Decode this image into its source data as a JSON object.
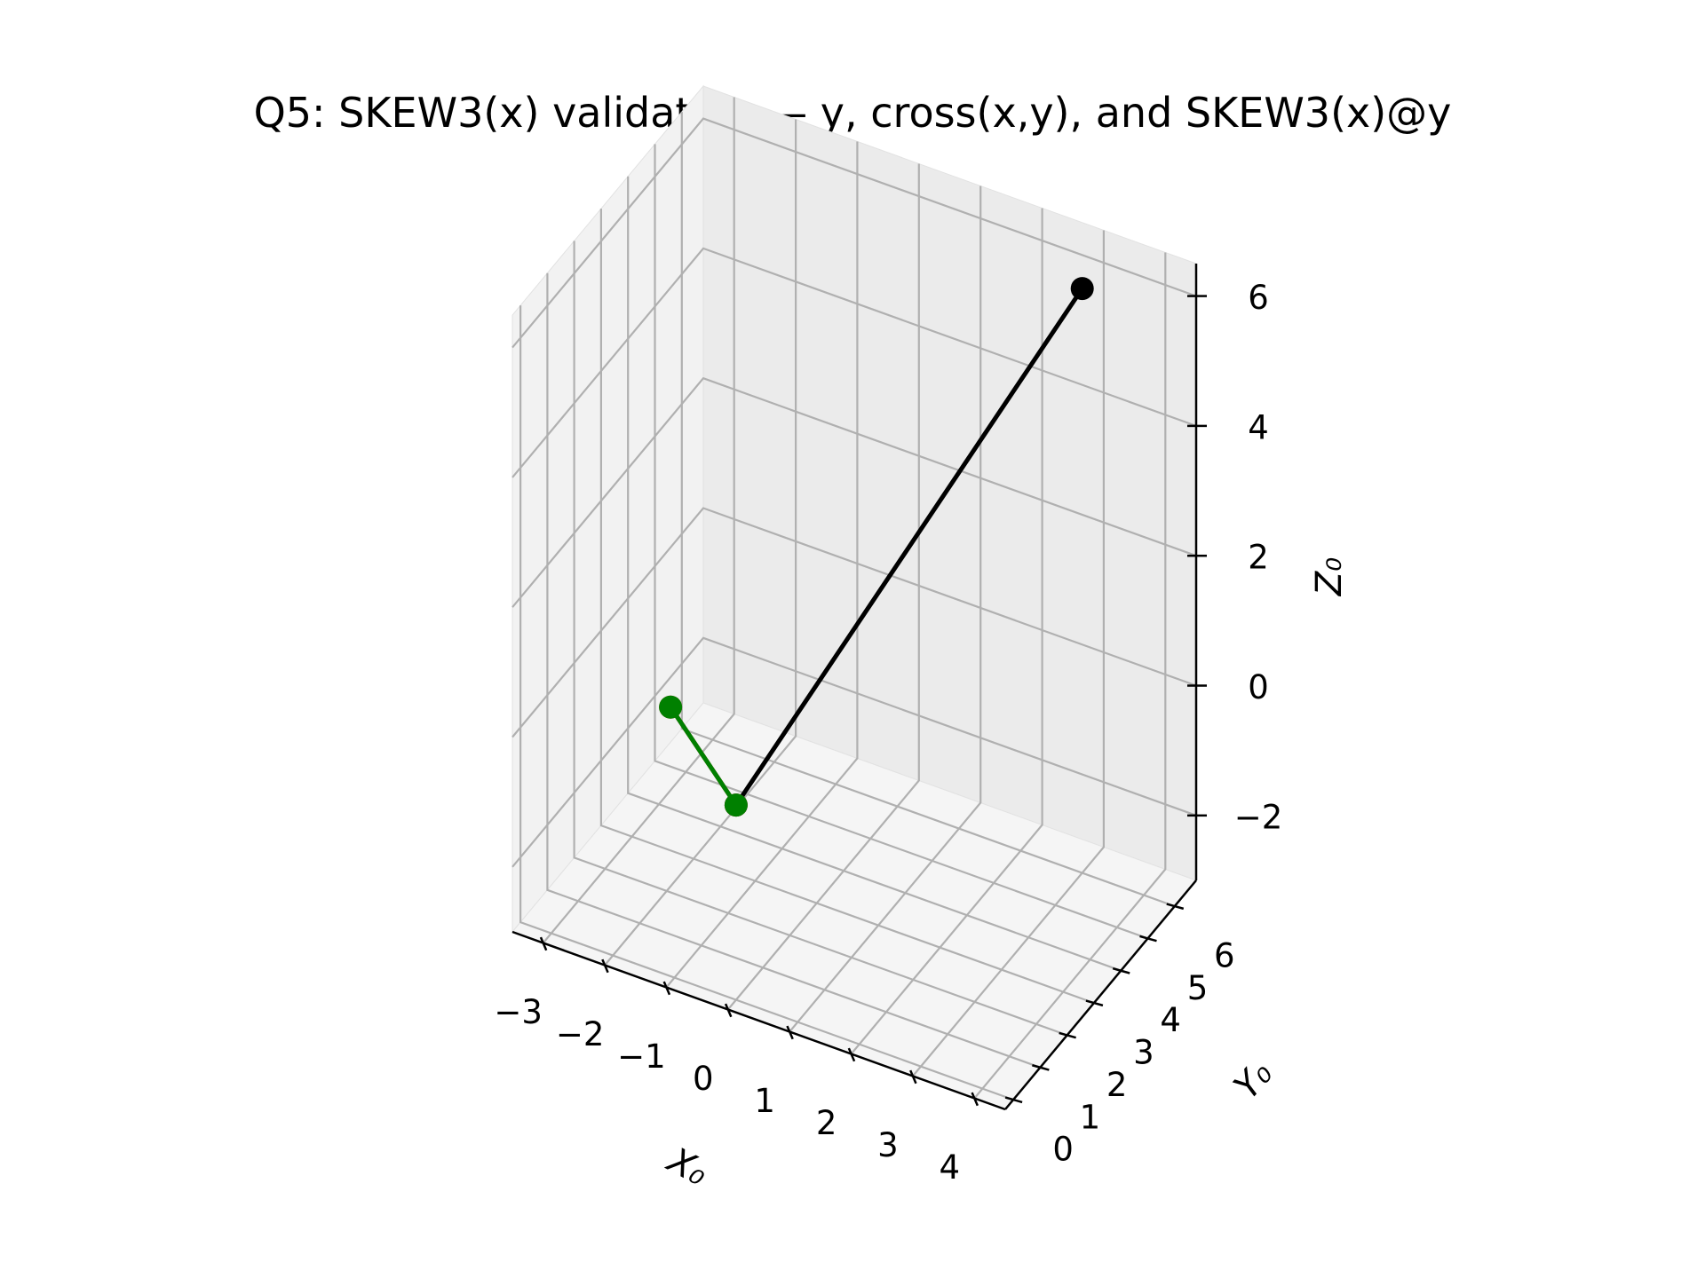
{
  "chart_data": {
    "type": "scatter3d",
    "title": "Q5: SKEW3(x) validation — y, cross(x,y), and SKEW3(x)@y",
    "xlabel": "X₀",
    "ylabel": "Y₀",
    "zlabel": "Z₀",
    "xlim": [
      -3.5,
      4.5
    ],
    "ylim": [
      -0.3,
      6.8
    ],
    "zlim": [
      -3,
      6.5
    ],
    "xticks": [
      "−3",
      "−2",
      "−1",
      "0",
      "1",
      "2",
      "3",
      "4"
    ],
    "yticks": [
      "0",
      "1",
      "2",
      "3",
      "4",
      "5",
      "6"
    ],
    "zticks": [
      "−2",
      "0",
      "2",
      "4",
      "6"
    ],
    "grid": true,
    "series": [
      {
        "color": "#000000",
        "points": [
          [
            0,
            0,
            0
          ],
          [
            3,
            6,
            6
          ]
        ]
      },
      {
        "color": "#d62728",
        "points": [
          [
            0,
            0,
            0
          ],
          [
            -1.5,
            1,
            0.5
          ]
        ]
      },
      {
        "color": "#008000",
        "points": [
          [
            0,
            0,
            0
          ],
          [
            -1.5,
            1,
            0.5
          ]
        ]
      }
    ]
  }
}
